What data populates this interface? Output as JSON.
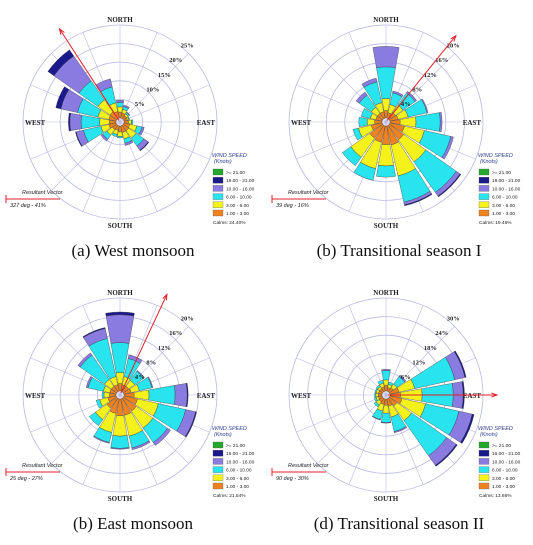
{
  "speed_bins": [
    {
      "label": ">= 21.00",
      "color": "#22a82a"
    },
    {
      "label": "16.00 - 21.00",
      "color": "#1a1a8c"
    },
    {
      "label": "10.00 - 16.00",
      "color": "#8a7be0"
    },
    {
      "label": "6.00 - 10.00",
      "color": "#27e4ee"
    },
    {
      "label": "3.00 - 6.00",
      "color": "#f4f21a"
    },
    {
      "label": "1.00 - 3.00",
      "color": "#ee8220"
    }
  ],
  "legend": {
    "title": "WIND SPEED",
    "unit": "(Knots)"
  },
  "directions": {
    "north": "NORTH",
    "south": "SOUTH",
    "east": "EAST",
    "west": "WEST"
  },
  "resultant_label": "Resultant Vector",
  "chart_data": [
    {
      "type": "windrose",
      "caption": "(a)   West monsoon",
      "ring_labels": [
        "5%",
        "10%",
        "15%",
        "20%",
        "25%"
      ],
      "ring_max_percent": 25,
      "calms": "Calms: 24.40%",
      "resultant": {
        "text": "327 deg - 41%",
        "direction_deg": 327
      },
      "petals": [
        {
          "dir": 0,
          "cum": [
            1.6,
            3.0,
            4.2,
            4.8,
            4.8,
            4.8
          ]
        },
        {
          "dir": 22.5,
          "cum": [
            1.4,
            2.4,
            3.2,
            3.6,
            3.6,
            3.6
          ]
        },
        {
          "dir": 45,
          "cum": [
            1.0,
            1.6,
            2.0,
            2.2,
            2.2,
            2.2
          ]
        },
        {
          "dir": 67.5,
          "cum": [
            1.0,
            1.4,
            1.6,
            1.6,
            1.6,
            1.6
          ]
        },
        {
          "dir": 90,
          "cum": [
            1.2,
            2.0,
            2.4,
            2.4,
            2.4,
            2.4
          ]
        },
        {
          "dir": 112.5,
          "cum": [
            1.6,
            3.6,
            5.0,
            5.6,
            5.6,
            5.6
          ]
        },
        {
          "dir": 135,
          "cum": [
            1.8,
            4.2,
            6.8,
            8.2,
            8.4,
            8.4
          ]
        },
        {
          "dir": 157.5,
          "cum": [
            1.8,
            3.6,
            4.8,
            5.4,
            5.4,
            5.4
          ]
        },
        {
          "dir": 180,
          "cum": [
            1.6,
            2.8,
            3.2,
            3.2,
            3.2,
            3.2
          ]
        },
        {
          "dir": 202.5,
          "cum": [
            1.2,
            2.4,
            3.0,
            3.0,
            3.0,
            3.0
          ]
        },
        {
          "dir": 225,
          "cum": [
            1.4,
            3.2,
            4.6,
            5.2,
            5.2,
            5.2
          ]
        },
        {
          "dir": 247.5,
          "cum": [
            2.0,
            4.2,
            9.0,
            11.0,
            11.2,
            11.2
          ]
        },
        {
          "dir": 270,
          "cum": [
            1.8,
            4.4,
            9.4,
            12.4,
            12.8,
            12.8
          ]
        },
        {
          "dir": 292.5,
          "cum": [
            2.0,
            5.0,
            10.6,
            15.2,
            16.6,
            16.6
          ]
        },
        {
          "dir": 315,
          "cum": [
            2.2,
            6.2,
            12.4,
            20.6,
            22.6,
            22.6
          ]
        },
        {
          "dir": 337.5,
          "cum": [
            1.8,
            4.2,
            8.6,
            10.8,
            10.8,
            10.8
          ]
        }
      ]
    },
    {
      "type": "windrose",
      "caption": "(b) Transitional season I",
      "ring_labels": [
        "4%",
        "8%",
        "12%",
        "16%",
        "20%"
      ],
      "ring_max_percent": 20,
      "calms": "Calms: 19.46%",
      "resultant": {
        "text": "39 deg - 16%",
        "direction_deg": 39
      },
      "petals": [
        {
          "dir": 0,
          "cum": [
            1.6,
            4.2,
            11.0,
            15.4,
            15.4,
            15.4
          ]
        },
        {
          "dir": 22.5,
          "cum": [
            1.2,
            3.0,
            5.6,
            6.0,
            6.0,
            6.0
          ]
        },
        {
          "dir": 45,
          "cum": [
            1.6,
            3.6,
            6.8,
            7.2,
            7.2,
            7.2
          ]
        },
        {
          "dir": 67.5,
          "cum": [
            1.8,
            4.0,
            8.2,
            8.4,
            8.4,
            8.4
          ]
        },
        {
          "dir": 90,
          "cum": [
            2.2,
            5.6,
            10.8,
            11.2,
            11.2,
            11.2
          ]
        },
        {
          "dir": 112.5,
          "cum": [
            3.2,
            7.6,
            13.4,
            14.0,
            14.0,
            14.0
          ]
        },
        {
          "dir": 135,
          "cum": [
            3.8,
            9.6,
            17.6,
            18.6,
            18.8,
            18.8
          ]
        },
        {
          "dir": 157.5,
          "cum": [
            4.2,
            11.0,
            16.8,
            17.4,
            17.6,
            17.6
          ]
        },
        {
          "dir": 180,
          "cum": [
            4.0,
            8.6,
            11.0,
            11.0,
            11.0,
            11.0
          ]
        },
        {
          "dir": 202.5,
          "cum": [
            3.6,
            9.4,
            12.0,
            12.0,
            12.0,
            12.0
          ]
        },
        {
          "dir": 225,
          "cum": [
            3.4,
            8.4,
            10.6,
            10.6,
            10.6,
            10.6
          ]
        },
        {
          "dir": 247.5,
          "cum": [
            2.4,
            5.2,
            6.4,
            6.4,
            6.4,
            6.4
          ]
        },
        {
          "dir": 270,
          "cum": [
            1.6,
            3.2,
            5.0,
            5.0,
            5.0,
            5.0
          ]
        },
        {
          "dir": 292.5,
          "cum": [
            1.4,
            2.6,
            4.6,
            4.6,
            4.6,
            4.6
          ]
        },
        {
          "dir": 315,
          "cum": [
            1.4,
            3.0,
            6.2,
            7.0,
            7.0,
            7.0
          ]
        },
        {
          "dir": 337.5,
          "cum": [
            1.4,
            3.4,
            8.0,
            8.8,
            8.8,
            8.8
          ]
        }
      ]
    },
    {
      "type": "windrose",
      "caption": "(b)   East monsoon",
      "ring_labels": [
        "4%",
        "8%",
        "12%",
        "16%",
        "20%"
      ],
      "ring_max_percent": 20,
      "calms": "Calms: 21.54%",
      "resultant": {
        "text": "25 deg - 27%",
        "direction_deg": 25
      },
      "petals": [
        {
          "dir": 0,
          "cum": [
            1.6,
            4.0,
            10.4,
            16.4,
            17.0,
            17.0
          ]
        },
        {
          "dir": 22.5,
          "cum": [
            1.4,
            3.2,
            7.2,
            8.0,
            8.0,
            8.0
          ]
        },
        {
          "dir": 45,
          "cum": [
            1.4,
            3.0,
            5.4,
            5.6,
            5.6,
            5.6
          ]
        },
        {
          "dir": 67.5,
          "cum": [
            1.6,
            3.4,
            6.2,
            6.4,
            6.4,
            6.4
          ]
        },
        {
          "dir": 90,
          "cum": [
            2.2,
            5.4,
            11.0,
            13.6,
            13.8,
            13.8
          ]
        },
        {
          "dir": 112.5,
          "cum": [
            3.0,
            7.6,
            13.6,
            15.8,
            16.0,
            16.0
          ]
        },
        {
          "dir": 135,
          "cum": [
            3.4,
            7.8,
            11.6,
            12.4,
            12.4,
            12.4
          ]
        },
        {
          "dir": 157.5,
          "cum": [
            3.6,
            8.2,
            10.8,
            11.2,
            11.2,
            11.2
          ]
        },
        {
          "dir": 180,
          "cum": [
            3.6,
            8.0,
            10.6,
            10.8,
            10.8,
            10.8
          ]
        },
        {
          "dir": 202.5,
          "cum": [
            3.2,
            7.4,
            9.6,
            9.8,
            9.8,
            9.8
          ]
        },
        {
          "dir": 225,
          "cum": [
            2.6,
            5.6,
            7.2,
            7.2,
            7.2,
            7.2
          ]
        },
        {
          "dir": 247.5,
          "cum": [
            1.8,
            3.6,
            4.4,
            4.4,
            4.4,
            4.4
          ]
        },
        {
          "dir": 270,
          "cum": [
            1.4,
            2.6,
            3.0,
            3.0,
            3.0,
            3.0
          ]
        },
        {
          "dir": 292.5,
          "cum": [
            1.4,
            2.8,
            6.2,
            6.6,
            6.6,
            6.6
          ]
        },
        {
          "dir": 315,
          "cum": [
            1.4,
            3.2,
            9.6,
            10.2,
            10.2,
            10.2
          ]
        },
        {
          "dir": 337.5,
          "cum": [
            1.4,
            3.2,
            11.6,
            13.8,
            14.0,
            14.0
          ]
        }
      ]
    },
    {
      "type": "windrose",
      "caption": "(d) Transitional season II",
      "ring_labels": [
        "6%",
        "12%",
        "18%",
        "24%",
        "30%"
      ],
      "ring_max_percent": 30,
      "calms": "Calms: 13.66%",
      "resultant": {
        "text": "90 deg - 30%",
        "direction_deg": 90
      },
      "petals": [
        {
          "dir": 0,
          "cum": [
            1.8,
            3.6,
            6.6,
            7.0,
            7.0,
            7.0
          ]
        },
        {
          "dir": 22.5,
          "cum": [
            1.2,
            2.2,
            3.0,
            3.0,
            3.0,
            3.0
          ]
        },
        {
          "dir": 45,
          "cum": [
            1.6,
            3.0,
            6.0,
            6.6,
            6.6,
            6.6
          ]
        },
        {
          "dir": 67.5,
          "cum": [
            3.0,
            8.2,
            21.4,
            24.8,
            25.2,
            25.2
          ]
        },
        {
          "dir": 90,
          "cum": [
            3.4,
            10.4,
            20.4,
            23.6,
            24.0,
            24.0
          ]
        },
        {
          "dir": 112.5,
          "cum": [
            4.0,
            11.8,
            22.8,
            27.2,
            27.8,
            27.8
          ]
        },
        {
          "dir": 135,
          "cum": [
            3.0,
            8.8,
            22.6,
            26.4,
            26.8,
            26.8
          ]
        },
        {
          "dir": 157.5,
          "cum": [
            2.4,
            6.0,
            10.8,
            11.2,
            11.2,
            11.2
          ]
        },
        {
          "dir": 180,
          "cum": [
            2.0,
            4.6,
            7.6,
            7.8,
            7.8,
            7.8
          ]
        },
        {
          "dir": 202.5,
          "cum": [
            1.8,
            4.0,
            6.8,
            7.0,
            7.0,
            7.0
          ]
        },
        {
          "dir": 225,
          "cum": [
            1.4,
            2.6,
            3.4,
            3.4,
            3.4,
            3.4
          ]
        },
        {
          "dir": 247.5,
          "cum": [
            1.2,
            2.0,
            2.6,
            2.6,
            2.6,
            2.6
          ]
        },
        {
          "dir": 270,
          "cum": [
            1.2,
            2.0,
            2.4,
            2.4,
            2.4,
            2.4
          ]
        },
        {
          "dir": 292.5,
          "cum": [
            1.2,
            2.0,
            2.4,
            2.4,
            2.4,
            2.4
          ]
        },
        {
          "dir": 315,
          "cum": [
            1.2,
            2.0,
            2.6,
            2.6,
            2.6,
            2.6
          ]
        },
        {
          "dir": 337.5,
          "cum": [
            1.4,
            2.6,
            3.6,
            3.6,
            3.6,
            3.6
          ]
        }
      ]
    }
  ]
}
